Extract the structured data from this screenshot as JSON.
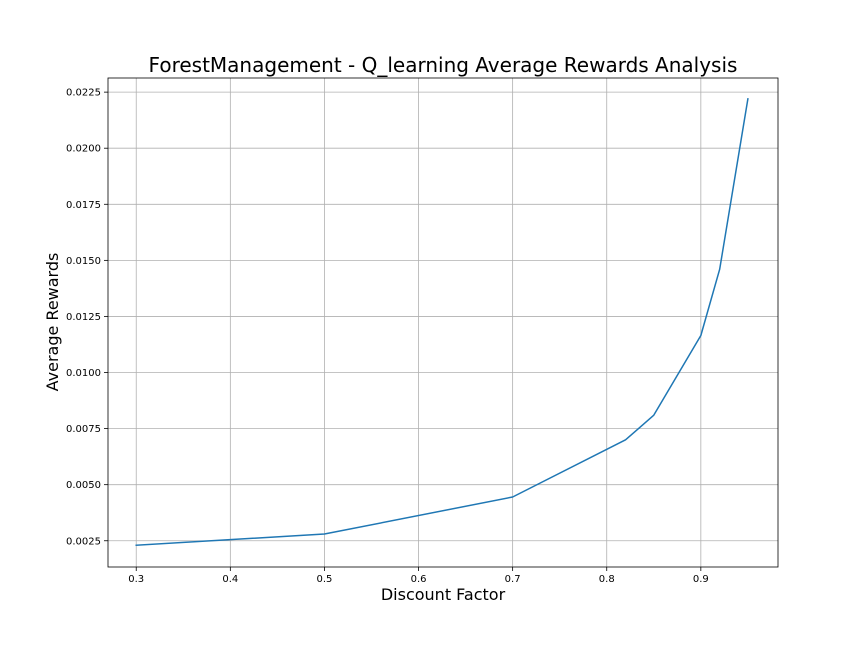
{
  "chart_data": {
    "type": "line",
    "title": "ForestManagement - Q_learning Average Rewards Analysis",
    "xlabel": "Discount Factor",
    "ylabel": "Average Rewards",
    "xlim": [
      0.27,
      0.982
    ],
    "ylim": [
      0.00133,
      0.02313
    ],
    "grid": true,
    "x_ticks": [
      "0.3",
      "0.4",
      "0.5",
      "0.6",
      "0.7",
      "0.8",
      "0.9"
    ],
    "y_ticks": [
      "0.0025",
      "0.0050",
      "0.0075",
      "0.0100",
      "0.0125",
      "0.0150",
      "0.0175",
      "0.0200",
      "0.0225"
    ],
    "series": [
      {
        "color": "#1f77b4",
        "x": [
          0.3,
          0.5,
          0.7,
          0.82,
          0.85,
          0.9,
          0.92,
          0.95
        ],
        "y": [
          0.0023,
          0.0028,
          0.00445,
          0.007,
          0.0081,
          0.01165,
          0.0146,
          0.0222
        ]
      }
    ]
  }
}
